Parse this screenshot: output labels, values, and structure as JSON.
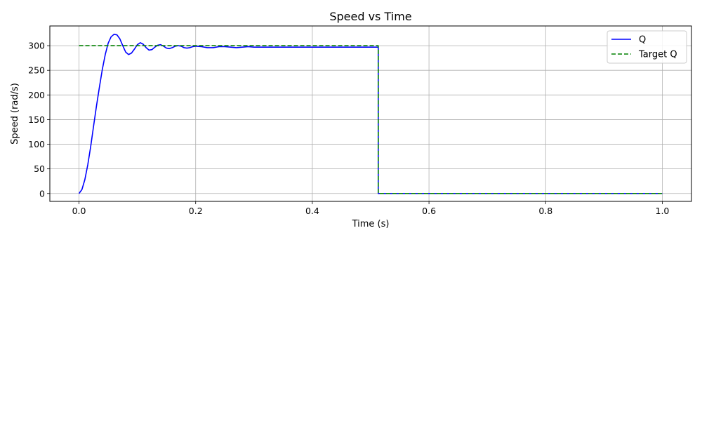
{
  "chart_data": {
    "type": "line",
    "title": "Speed vs Time",
    "xlabel": "Time (s)",
    "ylabel": "Speed (rad/s)",
    "xlim": [
      -0.05,
      1.05
    ],
    "ylim": [
      -16,
      340
    ],
    "xticks": [
      0.0,
      0.2,
      0.4,
      0.6,
      0.8,
      1.0
    ],
    "xtick_labels": [
      "0.0",
      "0.2",
      "0.4",
      "0.6",
      "0.8",
      "1.0"
    ],
    "yticks": [
      0,
      50,
      100,
      150,
      200,
      250,
      300
    ],
    "ytick_labels": [
      "0",
      "50",
      "100",
      "150",
      "200",
      "250",
      "300"
    ],
    "grid": true,
    "legend_position": "top-right",
    "series": [
      {
        "name": "Q",
        "color": "#0000ff",
        "style": "solid",
        "x": [
          0.0,
          0.005,
          0.01,
          0.015,
          0.02,
          0.025,
          0.03,
          0.035,
          0.04,
          0.045,
          0.05,
          0.055,
          0.06,
          0.065,
          0.07,
          0.075,
          0.08,
          0.085,
          0.09,
          0.095,
          0.1,
          0.105,
          0.11,
          0.115,
          0.12,
          0.125,
          0.13,
          0.135,
          0.14,
          0.145,
          0.15,
          0.155,
          0.16,
          0.165,
          0.17,
          0.175,
          0.18,
          0.185,
          0.19,
          0.195,
          0.2,
          0.21,
          0.22,
          0.23,
          0.24,
          0.25,
          0.26,
          0.27,
          0.28,
          0.29,
          0.3,
          0.32,
          0.34,
          0.36,
          0.38,
          0.4,
          0.45,
          0.5,
          0.513,
          0.513,
          0.6,
          0.8,
          1.0
        ],
        "y": [
          0,
          8,
          28,
          58,
          95,
          137,
          178,
          216,
          252,
          282,
          305,
          318,
          323,
          322,
          314,
          300,
          287,
          282,
          285,
          293,
          302,
          306,
          303,
          296,
          291,
          292,
          297,
          301,
          302,
          299,
          295,
          294,
          296,
          299,
          300,
          299,
          296,
          295,
          296,
          298,
          299,
          298,
          296,
          296,
          298,
          298,
          297,
          296,
          297,
          298,
          297,
          297,
          297,
          297,
          297,
          297,
          297,
          297,
          297,
          0,
          0,
          0,
          0
        ]
      },
      {
        "name": "Target Q",
        "color": "#008000",
        "style": "dashed",
        "x": [
          0.0,
          0.513,
          0.513,
          1.0
        ],
        "y": [
          300,
          300,
          0,
          0
        ]
      }
    ]
  }
}
